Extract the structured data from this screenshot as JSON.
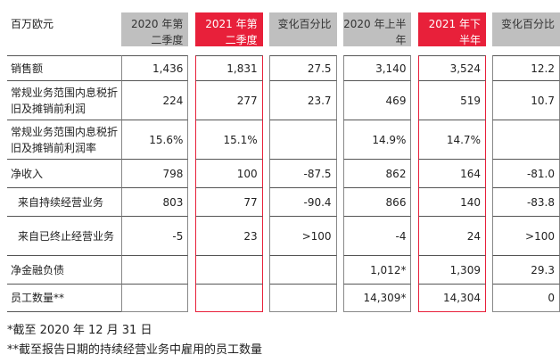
{
  "table": {
    "header": {
      "label": "百万欧元",
      "cols": [
        "2020 年第二季度",
        "2021 年第二季度",
        "变化百分比",
        "2020 年上半年",
        "2021 年下半年",
        "变化百分比"
      ]
    },
    "rows": [
      {
        "label": "销售额",
        "values": [
          "1,436",
          "1,831",
          "27.5",
          "3,140",
          "3,524",
          "12.2"
        ]
      },
      {
        "label": "常规业务范围内息税折旧及摊销前利润",
        "values": [
          "224",
          "277",
          "23.7",
          "469",
          "519",
          "10.7"
        ]
      },
      {
        "label": "常规业务范围内息税折旧及摊销前利润率",
        "values": [
          "15.6%",
          "15.1%",
          "",
          "14.9%",
          "14.7%",
          ""
        ]
      },
      {
        "label": "净收入",
        "values": [
          "798",
          "100",
          "-87.5",
          "862",
          "164",
          "-81.0"
        ]
      },
      {
        "label": "来自持续经营业务",
        "values": [
          "803",
          "77",
          "-90.4",
          "866",
          "140",
          "-83.8"
        ]
      },
      {
        "label": "来自已终止经营业务",
        "values": [
          "-5",
          "23",
          ">100",
          "-4",
          "24",
          ">100"
        ]
      },
      {
        "label": "净金融负债",
        "values": [
          "",
          "",
          "",
          "1,012*",
          "1,309",
          "29.3"
        ]
      },
      {
        "label": "员工数量**",
        "values": [
          "",
          "",
          "",
          "14,309*",
          "14,304",
          "0"
        ]
      }
    ]
  },
  "notes": [
    "*截至 2020 年 12 月 31 日",
    "**截至报告日期的持续经营业务中雇用的员工数量"
  ],
  "colors": {
    "header_grey": "#bfbfbf",
    "header_red": "#e8203a"
  }
}
